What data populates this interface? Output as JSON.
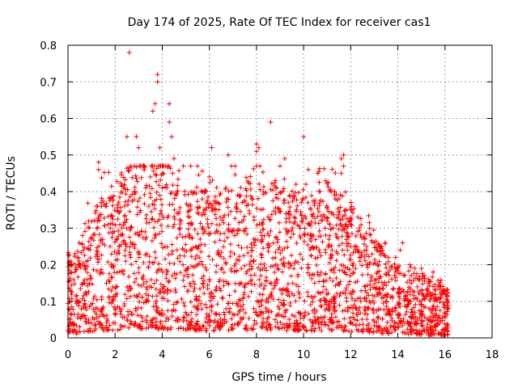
{
  "chart_data": {
    "type": "scatter",
    "title": "Day 174 of 2025, Rate Of TEC Index for receiver cas1",
    "xlabel": "GPS time / hours",
    "ylabel": "ROTI / TECUs",
    "xlim": [
      0,
      18
    ],
    "ylim": [
      0,
      0.8
    ],
    "xticks": [
      0,
      2,
      4,
      6,
      8,
      10,
      12,
      14,
      16,
      18
    ],
    "yticks": [
      0,
      0.1,
      0.2,
      0.3,
      0.4,
      0.5,
      0.6,
      0.7,
      0.8
    ],
    "xtick_labels": [
      "0",
      "2",
      "4",
      "6",
      "8",
      "10",
      "12",
      "14",
      "16",
      "18"
    ],
    "ytick_labels": [
      "0",
      "0.1",
      "0.2",
      "0.3",
      "0.4",
      "0.5",
      "0.6",
      "0.7",
      "0.8"
    ],
    "grid": true,
    "marker": "+",
    "series": [
      {
        "name": "ROTI",
        "color": "#ff0000",
        "points": [
          [
            2.6,
            0.78
          ],
          [
            3.8,
            0.72
          ],
          [
            3.8,
            0.7
          ],
          [
            3.7,
            0.64
          ],
          [
            3.6,
            0.62
          ],
          [
            4.3,
            0.64
          ],
          [
            4.3,
            0.59
          ],
          [
            4.4,
            0.55
          ],
          [
            8.6,
            0.59
          ],
          [
            10.0,
            0.55
          ],
          [
            2.5,
            0.55
          ],
          [
            2.9,
            0.55
          ],
          [
            3.0,
            0.52
          ],
          [
            3.9,
            0.52
          ],
          [
            6.1,
            0.52
          ],
          [
            8.0,
            0.53
          ],
          [
            8.0,
            0.51
          ],
          [
            8.1,
            0.52
          ],
          [
            6.8,
            0.5
          ],
          [
            11.6,
            0.49
          ],
          [
            11.7,
            0.5
          ],
          [
            11.7,
            0.47
          ],
          [
            1.3,
            0.48
          ],
          [
            1.3,
            0.46
          ],
          [
            4.5,
            0.49
          ],
          [
            9.2,
            0.49
          ],
          [
            9.0,
            0.47
          ],
          [
            4.9,
            0.47
          ],
          [
            5.5,
            0.47
          ],
          [
            6.0,
            0.44
          ],
          [
            7.1,
            0.47
          ],
          [
            10.2,
            0.46
          ],
          [
            10.6,
            0.45
          ],
          [
            11.6,
            0.45
          ],
          [
            10.1,
            0.42
          ],
          [
            10.7,
            0.4
          ],
          [
            1.4,
            0.37
          ],
          [
            1.2,
            0.36
          ],
          [
            1.6,
            0.36
          ],
          [
            1.3,
            0.33
          ],
          [
            2.4,
            0.36
          ],
          [
            2.8,
            0.4
          ],
          [
            3.3,
            0.41
          ],
          [
            3.5,
            0.44
          ],
          [
            4.0,
            0.41
          ],
          [
            4.6,
            0.39
          ],
          [
            5.2,
            0.36
          ],
          [
            5.7,
            0.38
          ],
          [
            6.4,
            0.35
          ],
          [
            7.4,
            0.37
          ],
          [
            7.8,
            0.38
          ],
          [
            8.3,
            0.4
          ],
          [
            8.8,
            0.43
          ],
          [
            9.4,
            0.39
          ],
          [
            9.9,
            0.37
          ],
          [
            11.2,
            0.34
          ],
          [
            11.5,
            0.38
          ],
          [
            11.8,
            0.31
          ],
          [
            12.3,
            0.33
          ],
          [
            12.8,
            0.3
          ],
          [
            13.3,
            0.25
          ],
          [
            13.9,
            0.22
          ],
          [
            14.2,
            0.26
          ],
          [
            14.1,
            0.24
          ],
          [
            14.5,
            0.2
          ],
          [
            15.0,
            0.19
          ],
          [
            15.5,
            0.18
          ],
          [
            15.3,
            0.16
          ],
          [
            15.7,
            0.14
          ],
          [
            16.0,
            0.13
          ],
          [
            16.0,
            0.09
          ],
          [
            14.9,
            0.12
          ],
          [
            0.3,
            0.23
          ],
          [
            0.4,
            0.22
          ],
          [
            0.3,
            0.18
          ],
          [
            0.5,
            0.2
          ],
          [
            0.1,
            0.13
          ],
          [
            1.8,
            0.3
          ],
          [
            1.9,
            0.29
          ],
          [
            2.2,
            0.31
          ],
          [
            2.3,
            0.28
          ],
          [
            4.8,
            0.32
          ],
          [
            6.6,
            0.33
          ],
          [
            7.7,
            0.34
          ],
          [
            9.6,
            0.33
          ],
          [
            11.0,
            0.32
          ],
          [
            12.0,
            0.31
          ],
          [
            12.6,
            0.27
          ],
          [
            13.0,
            0.26
          ],
          [
            13.6,
            0.22
          ],
          [
            0.0,
            0.02
          ],
          [
            0.5,
            0.03
          ],
          [
            1.0,
            0.04
          ],
          [
            2.0,
            0.04
          ],
          [
            4.0,
            0.03
          ],
          [
            6.0,
            0.05
          ],
          [
            8.0,
            0.04
          ],
          [
            10.0,
            0.03
          ],
          [
            12.0,
            0.04
          ],
          [
            14.0,
            0.03
          ],
          [
            15.0,
            0.01
          ],
          [
            16.1,
            0.02
          ]
        ]
      }
    ]
  }
}
